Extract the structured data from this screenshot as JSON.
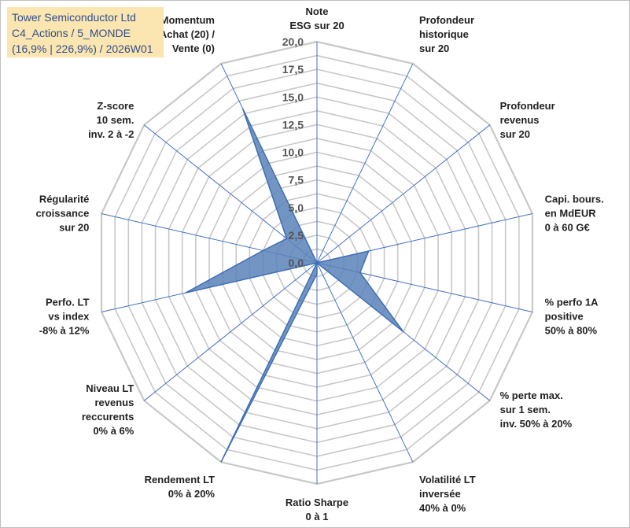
{
  "header": {
    "line1": "Tower Semiconductor Ltd",
    "line2": "C4_Actions / 5_MONDE",
    "line3": "(16,9% | 226,9%) / 2026W01"
  },
  "colors": {
    "grid": "#c8c8c8",
    "spoke": "#4472c4",
    "series_fill": "#5b82b8",
    "series_stroke": "#3e6fb5",
    "title_bg": "#fbe5b0"
  },
  "chart_data": {
    "type": "radar",
    "title": "Tower Semiconductor Ltd",
    "rlim": [
      0,
      20
    ],
    "tick_step": 2.5,
    "grid_levels": 16,
    "tick_labels": [
      "0,0",
      "2,5",
      "5,0",
      "7,5",
      "10,0",
      "12,5",
      "15,0",
      "17,5",
      "20,0"
    ],
    "axes": [
      {
        "label": [
          "Note",
          "ESG sur 20"
        ],
        "value": 0
      },
      {
        "label": [
          "Profondeur",
          "historique",
          "sur 20"
        ],
        "value": 0
      },
      {
        "label": [
          "Profondeur",
          "revenus",
          "sur 20"
        ],
        "value": 0
      },
      {
        "label": [
          "Capi. bours.",
          "en MdEUR",
          "0 à 60 G€"
        ],
        "value": 4.8
      },
      {
        "label": [
          "% perfo 1A",
          "positive",
          "50% à 80%"
        ],
        "value": 4.0
      },
      {
        "label": [
          "% perte max.",
          "sur 1 sem.",
          "inv. 50% à 20%"
        ],
        "value": 10.0
      },
      {
        "label": [
          "Volatilité LT",
          "inversée",
          "40% à 0%"
        ],
        "value": 0
      },
      {
        "label": [
          "Ratio Sharpe",
          "0 à 1"
        ],
        "value": 1.0
      },
      {
        "label": [
          "Rendement LT",
          "0% à 20%"
        ],
        "value": 20.0
      },
      {
        "label": [
          "Niveau LT",
          "revenus",
          "reccurents",
          "0% à 6%"
        ],
        "value": 0
      },
      {
        "label": [
          "Perfo. LT",
          "vs index",
          "-8% à 12%"
        ],
        "value": 12.2
      },
      {
        "label": [
          "Régularité",
          "croissance",
          "sur 20"
        ],
        "value": 5.0
      },
      {
        "label": [
          "Z-score",
          "10 sem.",
          "inv. 2 à -2"
        ],
        "value": 3.5
      },
      {
        "label": [
          "Momentum",
          "Achat (20) /",
          "Vente (0)"
        ],
        "value": 15.5
      }
    ],
    "series": [
      {
        "name": "Tower Semiconductor Ltd"
      }
    ]
  }
}
